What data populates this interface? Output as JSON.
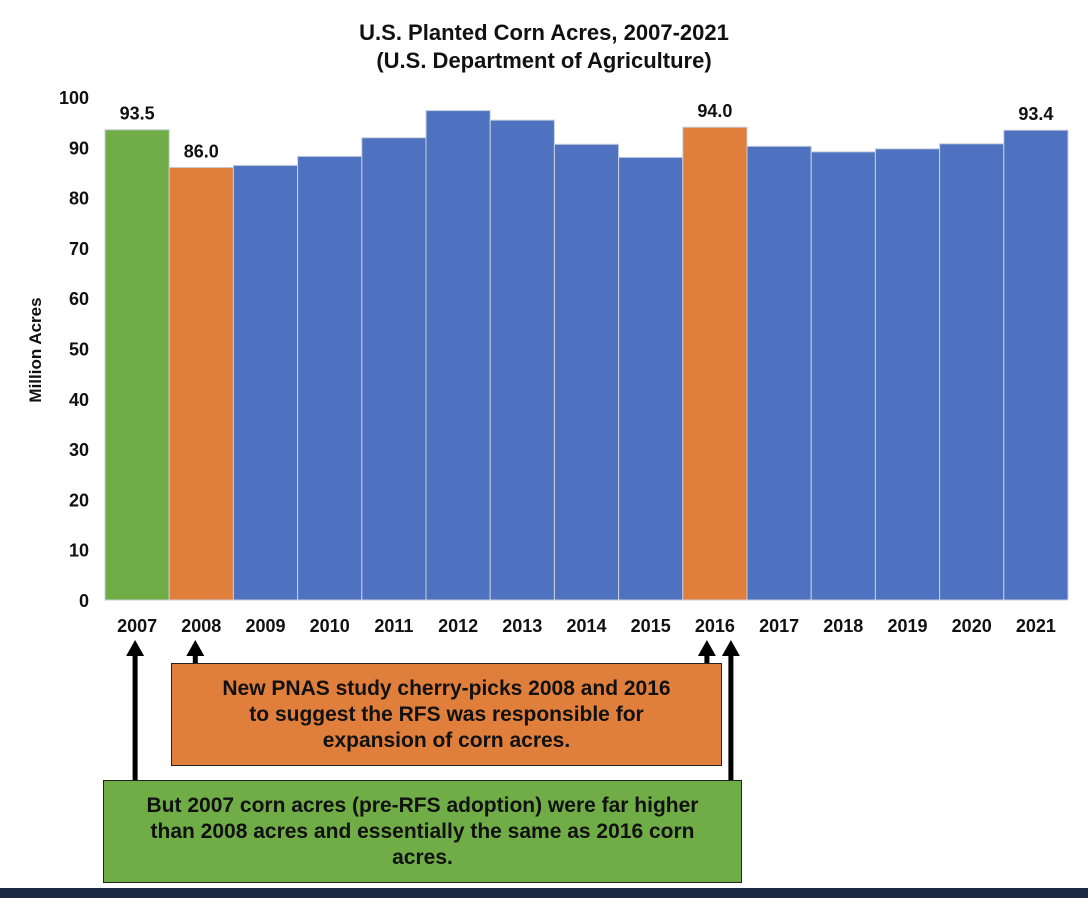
{
  "chart_data": {
    "type": "bar",
    "title": "U.S. Planted Corn Acres, 2007-2021",
    "subtitle": "(U.S. Department of Agriculture)",
    "ylabel": "Million Acres",
    "xlabel": "",
    "ylim": [
      0,
      100
    ],
    "yticks": [
      0,
      10,
      20,
      30,
      40,
      50,
      60,
      70,
      80,
      90,
      100
    ],
    "grid": false,
    "categories": [
      "2007",
      "2008",
      "2009",
      "2010",
      "2011",
      "2012",
      "2013",
      "2014",
      "2015",
      "2016",
      "2017",
      "2018",
      "2019",
      "2020",
      "2021"
    ],
    "values": [
      93.5,
      86.0,
      86.4,
      88.2,
      91.9,
      97.3,
      95.4,
      90.6,
      88.0,
      94.0,
      90.2,
      89.1,
      89.7,
      90.7,
      93.4
    ],
    "bar_colors": [
      "#70ad47",
      "#e07e3c",
      "#4f72c0",
      "#4f72c0",
      "#4f72c0",
      "#4f72c0",
      "#4f72c0",
      "#4f72c0",
      "#4f72c0",
      "#e07e3c",
      "#4f72c0",
      "#4f72c0",
      "#4f72c0",
      "#4f72c0",
      "#4f72c0"
    ],
    "data_labels": [
      {
        "category": "2007",
        "text": "93.5"
      },
      {
        "category": "2008",
        "text": "86.0"
      },
      {
        "category": "2016",
        "text": "94.0"
      },
      {
        "category": "2021",
        "text": "93.4"
      }
    ]
  },
  "annotations": {
    "orange_box": {
      "text": "New PNAS study cherry-picks 2008 and 2016 to suggest the RFS was responsible for expansion of corn acres.",
      "color": "#e07e3c",
      "points_to": [
        "2008",
        "2016"
      ]
    },
    "green_box": {
      "text": "But 2007 corn acres (pre-RFS adoption) were far higher than 2008 acres and essentially the same as 2016 corn acres.",
      "color": "#70ad47",
      "points_to": [
        "2007",
        "2016"
      ]
    }
  }
}
